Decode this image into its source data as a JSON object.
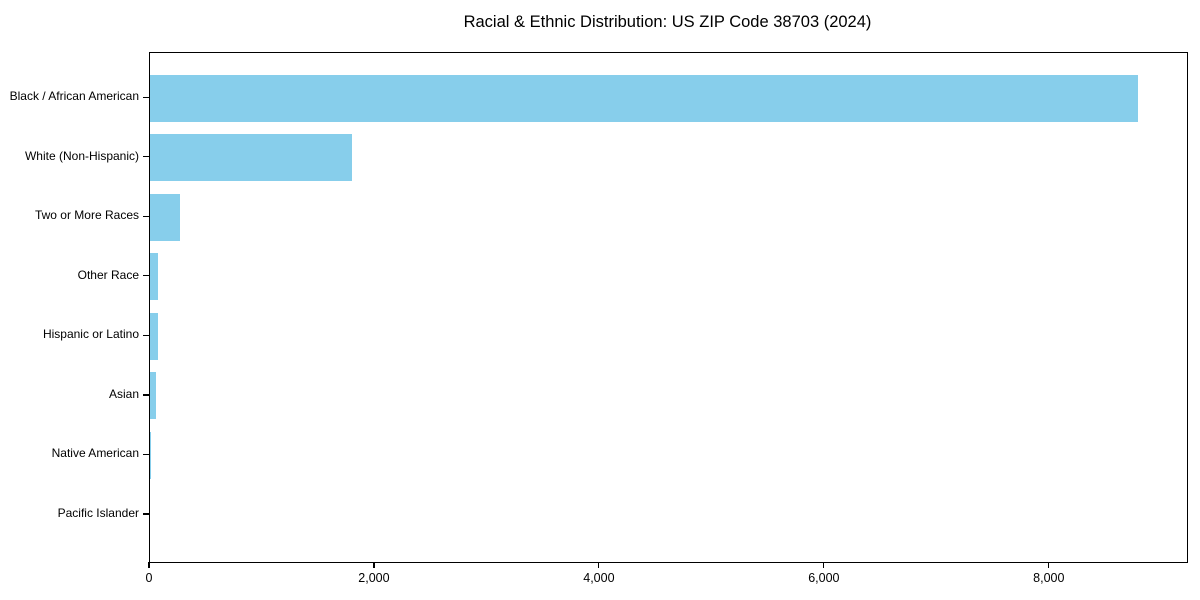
{
  "title": "Racial & Ethnic Distribution: US ZIP Code 38703 (2024)",
  "chart_data": {
    "type": "bar",
    "orientation": "horizontal",
    "title": "Racial & Ethnic Distribution: US ZIP Code 38703 (2024)",
    "categories": [
      "Black / African American",
      "White (Non-Hispanic)",
      "Two or More Races",
      "Other Race",
      "Hispanic or Latino",
      "Asian",
      "Native American",
      "Pacific Islander"
    ],
    "values": [
      8780,
      1800,
      270,
      70,
      75,
      50,
      12,
      0
    ],
    "xlabel": "",
    "ylabel": "",
    "xlim": [
      0,
      9220
    ],
    "xticks": [
      0,
      2000,
      4000,
      6000,
      8000
    ],
    "xtick_labels": [
      "0",
      "2,000",
      "4,000",
      "6,000",
      "8,000"
    ],
    "bar_color": "#87CEEB",
    "axis_color": "#000000",
    "grid": false,
    "legend": null
  }
}
